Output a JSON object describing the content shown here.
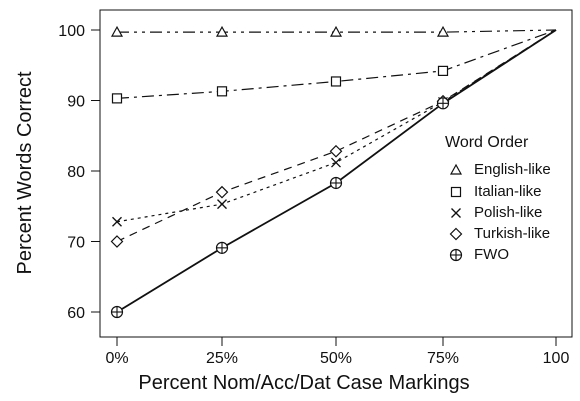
{
  "chart_data": {
    "type": "line",
    "title": "",
    "xlabel": "Percent Nom/Acc/Dat Case Markings",
    "ylabel": "Percent Words Correct",
    "ylim": [
      57,
      102
    ],
    "x_values": [
      0,
      25,
      50,
      75,
      100
    ],
    "x_tick_labels": [
      "0%",
      "25%",
      "50%",
      "75%",
      "100"
    ],
    "y_ticks": [
      60,
      70,
      80,
      90,
      100
    ],
    "y_tick_labels": [
      "60",
      "70",
      "80",
      "90",
      "100"
    ],
    "grid": false,
    "legend": {
      "title": "Word Order",
      "placement": "right"
    },
    "series": [
      {
        "name": "English-like",
        "marker": "triangle",
        "dash": "dash-dot-dot",
        "values": [
          99.7,
          99.7,
          99.7,
          99.7,
          100
        ]
      },
      {
        "name": "Italian-like",
        "marker": "square",
        "dash": "dash-dot",
        "values": [
          90.3,
          91.3,
          92.7,
          94.2,
          100
        ]
      },
      {
        "name": "Polish-like",
        "marker": "x",
        "dash": "dotted",
        "values": [
          72.8,
          75.3,
          81.2,
          89.8,
          100
        ]
      },
      {
        "name": "Turkish-like",
        "marker": "diamond",
        "dash": "dashed",
        "values": [
          70.0,
          77.0,
          82.8,
          89.9,
          100
        ]
      },
      {
        "name": "FWO",
        "marker": "circle-plus",
        "dash": "solid",
        "values": [
          60.0,
          69.1,
          78.3,
          89.6,
          100
        ]
      }
    ]
  }
}
